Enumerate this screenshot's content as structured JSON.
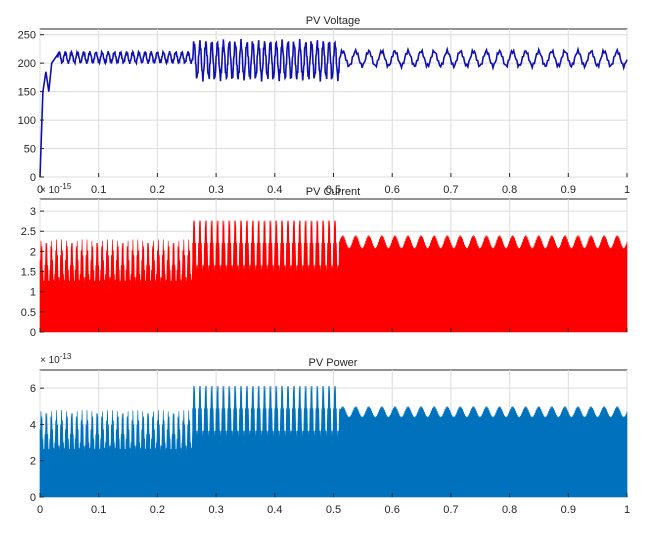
{
  "chart_data": [
    {
      "type": "line",
      "title": "PV Voltage",
      "color": "#1010b0",
      "xlim": [
        0,
        1
      ],
      "ylim": [
        0,
        260
      ],
      "x_ticks": [
        0,
        0.1,
        0.2,
        0.3,
        0.4,
        0.5,
        0.6,
        0.7,
        0.8,
        0.9,
        1
      ],
      "x_tick_labels": [
        "0",
        "0.1",
        "0.2",
        "0.3",
        "0.4",
        "0.5",
        "0.6",
        "0.7",
        "0.8",
        "0.9",
        "1"
      ],
      "y_ticks": [
        0,
        50,
        100,
        150,
        200,
        250
      ],
      "y_tick_labels": [
        "0",
        "50",
        "100",
        "150",
        "200",
        "250"
      ],
      "y_exponent": "",
      "grid": true,
      "series": [
        {
          "segments": [
            {
              "x": [
                0,
                0.005,
                0.01,
                0.015,
                0.02,
                0.03
              ],
              "y": [
                0,
                150,
                185,
                150,
                200,
                215
              ]
            },
            {
              "x_range": [
                0.03,
                0.26
              ],
              "center": 210,
              "amplitude": 9,
              "cycles": 22
            },
            {
              "x_range": [
                0.26,
                0.51
              ],
              "center": 205,
              "amplitude": 30,
              "cycles": 25
            },
            {
              "x_range": [
                0.51,
                1.0
              ],
              "center": 208,
              "amplitude": 13,
              "cycles": 22
            }
          ]
        }
      ]
    },
    {
      "type": "area",
      "title": "PV Current",
      "color": "#ff0000",
      "xlim": [
        0,
        1
      ],
      "ylim": [
        0,
        3.3
      ],
      "x_ticks": [
        0,
        0.1,
        0.2,
        0.3,
        0.4,
        0.5,
        0.6,
        0.7,
        0.8,
        0.9,
        1
      ],
      "x_tick_labels": [],
      "y_ticks": [
        0,
        0.5,
        1,
        1.5,
        2,
        2.5,
        3
      ],
      "y_tick_labels": [
        "0",
        "0.5",
        "1",
        "1.5",
        "2",
        "2.5",
        "3"
      ],
      "y_exponent_base": "× 10",
      "y_exponent": "-15",
      "grid": true,
      "series": [
        {
          "segments": [
            {
              "x_range": [
                0,
                0.26
              ],
              "peak": 2.3,
              "min": 0,
              "cycles": 30
            },
            {
              "x_range": [
                0.26,
                0.51
              ],
              "peak": 2.85,
              "min": 0,
              "cycles": 25
            },
            {
              "x_range": [
                0.51,
                1.0
              ],
              "peak": 2.4,
              "min": 1.7,
              "cycles": 22
            }
          ]
        }
      ]
    },
    {
      "type": "area",
      "title": "PV Power",
      "color": "#0072bd",
      "xlim": [
        0,
        1
      ],
      "ylim": [
        0,
        7
      ],
      "x_ticks": [
        0,
        0.1,
        0.2,
        0.3,
        0.4,
        0.5,
        0.6,
        0.7,
        0.8,
        0.9,
        1
      ],
      "x_tick_labels": [
        "0",
        "0.1",
        "0.2",
        "0.3",
        "0.4",
        "0.5",
        "0.6",
        "0.7",
        "0.8",
        "0.9",
        "1"
      ],
      "y_ticks": [
        0,
        2,
        4,
        6
      ],
      "y_tick_labels": [
        "0",
        "2",
        "4",
        "6"
      ],
      "y_exponent_base": "× 10",
      "y_exponent": "-13",
      "grid": true,
      "series": [
        {
          "segments": [
            {
              "x_range": [
                0,
                0.26
              ],
              "peak": 4.8,
              "min": 0,
              "cycles": 30
            },
            {
              "x_range": [
                0.26,
                0.51
              ],
              "peak": 6.3,
              "min": 0,
              "cycles": 25
            },
            {
              "x_range": [
                0.51,
                1.0
              ],
              "peak": 5.0,
              "min": 3.7,
              "cycles": 22
            }
          ]
        }
      ]
    }
  ]
}
